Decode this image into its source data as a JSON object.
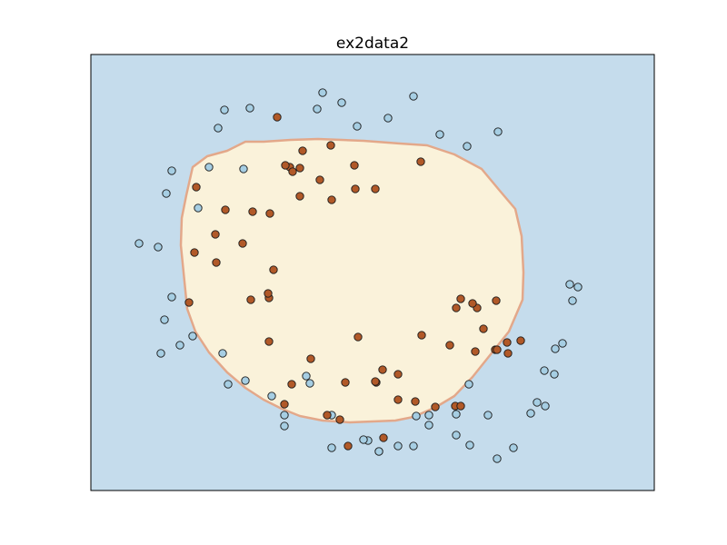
{
  "chart_data": {
    "type": "scatter",
    "title": "ex2data2",
    "xlabel": "",
    "ylabel": "",
    "xlim": [
      0,
      620
    ],
    "ylim": [
      0,
      480
    ],
    "axis_ticks": false,
    "grid": false,
    "legend": "none",
    "colors": {
      "background_region": "#c5dcec",
      "decision_region": "#faf2da",
      "boundary": "#e3a88a",
      "class_0": "#a6cee3",
      "class_1": "#b15928",
      "marker_edge": "#1a1a1a"
    },
    "decision_boundary": [
      [
        190,
        384
      ],
      [
        170,
        384
      ],
      [
        150,
        374
      ],
      [
        128,
        368
      ],
      [
        112,
        356
      ],
      [
        105,
        325
      ],
      [
        100,
        300
      ],
      [
        99,
        270
      ],
      [
        103,
        230
      ],
      [
        106,
        200
      ],
      [
        115,
        175
      ],
      [
        130,
        152
      ],
      [
        150,
        130
      ],
      [
        170,
        113
      ],
      [
        190,
        100
      ],
      [
        210,
        90
      ],
      [
        230,
        82
      ],
      [
        255,
        77
      ],
      [
        285,
        75
      ],
      [
        310,
        76
      ],
      [
        335,
        77
      ],
      [
        355,
        81
      ],
      [
        380,
        92
      ],
      [
        400,
        104
      ],
      [
        420,
        125
      ],
      [
        440,
        150
      ],
      [
        460,
        175
      ],
      [
        475,
        210
      ],
      [
        476,
        240
      ],
      [
        474,
        280
      ],
      [
        467,
        310
      ],
      [
        450,
        330
      ],
      [
        430,
        354
      ],
      [
        400,
        370
      ],
      [
        370,
        380
      ],
      [
        340,
        382
      ],
      [
        300,
        385
      ],
      [
        250,
        387
      ],
      [
        220,
        386
      ]
    ],
    "series": [
      {
        "class": 0,
        "x": [
          255,
          355,
          147,
          175,
          140,
          249,
          276,
          293,
          327,
          384,
          414,
          448,
          89,
          130,
          168,
          118,
          83,
          53,
          74,
          89,
          81,
          77,
          98,
          112,
          145,
          151,
          170,
          199,
          213,
          237,
          241,
          265,
          305,
          317,
          338,
          358,
          372,
          402,
          417,
          447,
          465,
          484,
          499,
          511,
          527,
          536,
          530,
          519,
          510,
          491,
          500,
          437,
          416,
          402,
          372,
          355,
          317,
          300,
          265,
          213
        ],
        "y": [
          438,
          434,
          419,
          421,
          399,
          420,
          427,
          401,
          410,
          392,
          379,
          395,
          352,
          356,
          354,
          311,
          327,
          272,
          268,
          213,
          188,
          151,
          160,
          170,
          151,
          117,
          121,
          104,
          83,
          126,
          118,
          83,
          55,
          43,
          49,
          82,
          72,
          61,
          50,
          35,
          47,
          85,
          132,
          156,
          227,
          224,
          209,
          162,
          128,
          97,
          93,
          83,
          117,
          84,
          83,
          49,
          43,
          56,
          47,
          71
        ]
      },
      {
        "class": 1,
        "x": [
          205,
          233,
          264,
          290,
          230,
          219,
          252,
          363,
          313,
          291,
          230,
          265,
          148,
          114,
          197,
          178,
          116,
          137,
          108,
          138,
          167,
          201,
          294,
          314,
          321,
          338,
          364,
          423,
          432,
          445,
          446,
          447,
          458,
          402,
          425,
          473,
          401,
          407,
          459,
          420,
          407,
          395,
          379,
          357,
          338,
          313,
          280,
          274,
          260,
          283,
          322,
          221,
          242,
          213,
          196,
          196,
          176,
          222,
          214,
          195
        ],
        "y": [
          411,
          374,
          380,
          358,
          355,
          356,
          342,
          362,
          332,
          332,
          324,
          320,
          309,
          262,
          305,
          307,
          334,
          282,
          207,
          251,
          272,
          243,
          169,
          119,
          133,
          128,
          171,
          153,
          178,
          155,
          209,
          155,
          163,
          201,
          201,
          165,
          93,
          93,
          151,
          206,
          211,
          160,
          92,
          98,
          100,
          120,
          119,
          78,
          83,
          49,
          58,
          117,
          145,
          95,
          164,
          212,
          210,
          351,
          358,
          217
        ]
      }
    ]
  }
}
